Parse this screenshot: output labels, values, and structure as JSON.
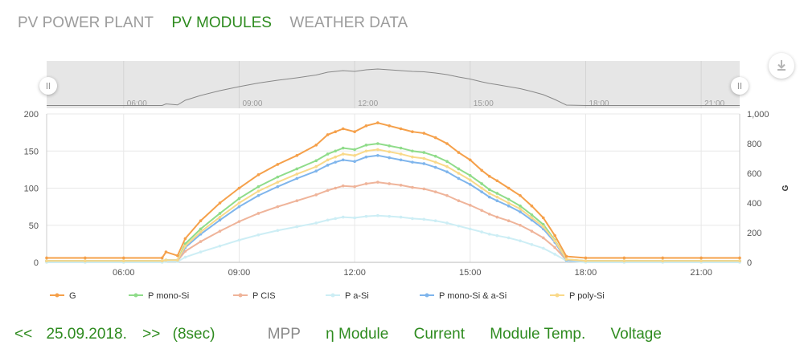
{
  "tabs": [
    {
      "label": "PV POWER PLANT",
      "active": false
    },
    {
      "label": "PV MODULES",
      "active": true
    },
    {
      "label": "WEATHER DATA",
      "active": false
    }
  ],
  "bottom": {
    "prev": "<<",
    "date": "25.09.2018.",
    "next": ">>",
    "interval": "(8sec)",
    "metrics": [
      {
        "label": "MPP",
        "active": false
      },
      {
        "label": "η Module",
        "active": true
      },
      {
        "label": "Current",
        "active": true
      },
      {
        "label": "Module Temp.",
        "active": true
      },
      {
        "label": "Voltage",
        "active": true
      }
    ]
  },
  "icons": {
    "download": "download-icon",
    "handle_left": "range-handle-left-icon",
    "handle_right": "range-handle-right-icon"
  },
  "chart_data": {
    "type": "line",
    "x_ticks": [
      "06:00",
      "09:00",
      "12:00",
      "15:00",
      "18:00",
      "21:00"
    ],
    "x_range": [
      4.0,
      22.0
    ],
    "y_left_ticks": [
      "0",
      "50",
      "100",
      "150",
      "200"
    ],
    "ylim_left": [
      0,
      200
    ],
    "y_right_ticks": [
      "0",
      "200",
      "400",
      "600",
      "800",
      "1,000"
    ],
    "ylim_right": [
      0,
      1000
    ],
    "ylabel_right": "G",
    "grid": true,
    "legend_position": "bottom",
    "navigator_ticks": [
      "06:00",
      "09:00",
      "12:00",
      "15:00",
      "18:00",
      "21:00"
    ],
    "x": [
      4.0,
      5.0,
      6.0,
      7.0,
      7.1,
      7.4,
      7.6,
      8.0,
      8.5,
      9.0,
      9.5,
      10.0,
      10.5,
      11.0,
      11.3,
      11.5,
      11.7,
      12.0,
      12.3,
      12.6,
      12.9,
      13.2,
      13.5,
      13.8,
      14.1,
      14.4,
      14.7,
      15.0,
      15.3,
      15.5,
      15.7,
      16.0,
      16.3,
      16.6,
      16.9,
      17.2,
      17.5,
      18.0,
      19.0,
      20.0,
      21.0,
      22.0
    ],
    "series": [
      {
        "name": "G",
        "color": "#f5a04a",
        "axis": "right",
        "values": [
          30,
          30,
          30,
          30,
          70,
          45,
          160,
          280,
          400,
          500,
          590,
          660,
          720,
          790,
          860,
          880,
          900,
          880,
          920,
          940,
          920,
          900,
          880,
          870,
          840,
          800,
          740,
          690,
          620,
          580,
          550,
          500,
          450,
          380,
          300,
          180,
          40,
          30,
          30,
          30,
          30,
          30
        ]
      },
      {
        "name": "P mono-Si",
        "color": "#8fdc8a",
        "axis": "left",
        "values": [
          2,
          2,
          2,
          2,
          3,
          3,
          25,
          45,
          66,
          86,
          102,
          115,
          126,
          137,
          146,
          150,
          154,
          152,
          158,
          160,
          157,
          154,
          150,
          148,
          143,
          136,
          126,
          117,
          106,
          98,
          93,
          85,
          76,
          64,
          51,
          30,
          4,
          2,
          2,
          2,
          2,
          2
        ]
      },
      {
        "name": "P CIS",
        "color": "#efb49a",
        "axis": "left",
        "values": [
          1,
          1,
          1,
          1,
          2,
          2,
          15,
          28,
          42,
          55,
          66,
          75,
          83,
          91,
          97,
          100,
          103,
          102,
          106,
          108,
          106,
          104,
          101,
          99,
          95,
          90,
          83,
          77,
          70,
          65,
          61,
          56,
          50,
          42,
          33,
          20,
          3,
          1,
          1,
          1,
          1,
          1
        ]
      },
      {
        "name": "P a-Si",
        "color": "#cdeef5",
        "axis": "left",
        "values": [
          0,
          0,
          0,
          0,
          1,
          1,
          7,
          14,
          22,
          30,
          37,
          43,
          48,
          53,
          57,
          59,
          61,
          60,
          62,
          63,
          62,
          61,
          59,
          58,
          56,
          53,
          49,
          45,
          41,
          38,
          36,
          33,
          29,
          24,
          19,
          11,
          2,
          0,
          0,
          0,
          0,
          0
        ]
      },
      {
        "name": "P mono-Si & a-Si",
        "color": "#7fb5ec",
        "axis": "left",
        "values": [
          2,
          2,
          2,
          2,
          3,
          3,
          20,
          38,
          57,
          75,
          90,
          102,
          113,
          123,
          131,
          135,
          138,
          136,
          142,
          144,
          141,
          138,
          135,
          133,
          128,
          122,
          113,
          105,
          95,
          88,
          83,
          76,
          68,
          57,
          45,
          27,
          3,
          2,
          2,
          2,
          2,
          2
        ]
      },
      {
        "name": "P poly-Si",
        "color": "#f9d98a",
        "axis": "left",
        "values": [
          2,
          2,
          2,
          2,
          3,
          3,
          22,
          41,
          61,
          80,
          96,
          108,
          119,
          129,
          138,
          142,
          146,
          144,
          150,
          152,
          149,
          146,
          142,
          140,
          135,
          129,
          120,
          111,
          100,
          93,
          88,
          80,
          72,
          60,
          48,
          29,
          4,
          2,
          2,
          2,
          2,
          2
        ]
      }
    ]
  }
}
